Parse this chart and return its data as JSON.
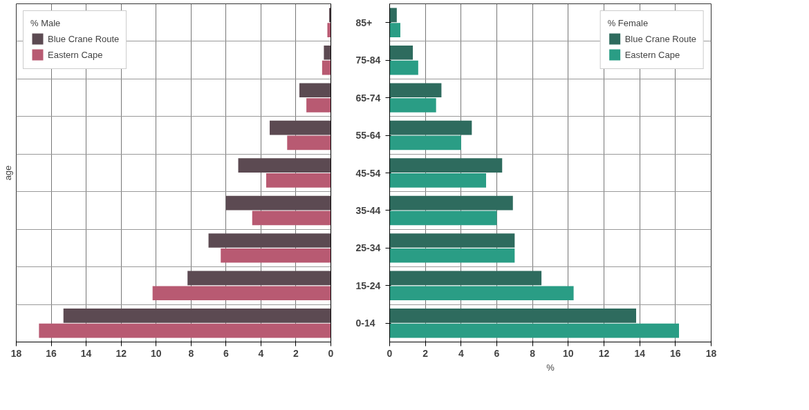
{
  "chart_data": [
    {
      "type": "bar",
      "orientation": "horizontal",
      "ylabel": "age",
      "legend_title": "% Male",
      "legend": "top left",
      "grid": true,
      "categories": [
        "85+",
        "75-84",
        "65-74",
        "55-64",
        "45-54",
        "35-44",
        "25-34",
        "15-24",
        "0-14"
      ],
      "xlim": [
        18,
        0
      ],
      "xticks": [
        18,
        16,
        14,
        12,
        10,
        8,
        6,
        4,
        2,
        0
      ],
      "series": [
        {
          "name": "Blue Crane Route",
          "color": "#5c4a52",
          "values": [
            0.1,
            0.4,
            1.8,
            3.5,
            5.3,
            6.0,
            7.0,
            8.2,
            15.3
          ]
        },
        {
          "name": "Eastern Cape",
          "color": "#b85a72",
          "values": [
            0.2,
            0.5,
            1.4,
            2.5,
            3.7,
            4.5,
            6.3,
            10.2,
            16.7
          ]
        }
      ]
    },
    {
      "type": "bar",
      "orientation": "horizontal",
      "xlabel": "%",
      "legend_title": "% Female",
      "legend": "top right",
      "grid": true,
      "tick_labels": "x",
      "categories": [
        null,
        null,
        null,
        null,
        null,
        null,
        null,
        null,
        null
      ],
      "xlim": [
        0,
        18
      ],
      "xticks": [
        0,
        2,
        4,
        6,
        8,
        10,
        12,
        14,
        16,
        18
      ],
      "series": [
        {
          "name": "Blue Crane Route",
          "color": "#2e6b5e",
          "values": [
            0.4,
            1.3,
            2.9,
            4.6,
            6.3,
            6.9,
            7.0,
            8.5,
            13.8
          ]
        },
        {
          "name": "Eastern Cape",
          "color": "#2a9d85",
          "values": [
            0.6,
            1.6,
            2.6,
            4.0,
            5.4,
            6.0,
            7.0,
            10.3,
            16.2
          ]
        }
      ]
    }
  ]
}
